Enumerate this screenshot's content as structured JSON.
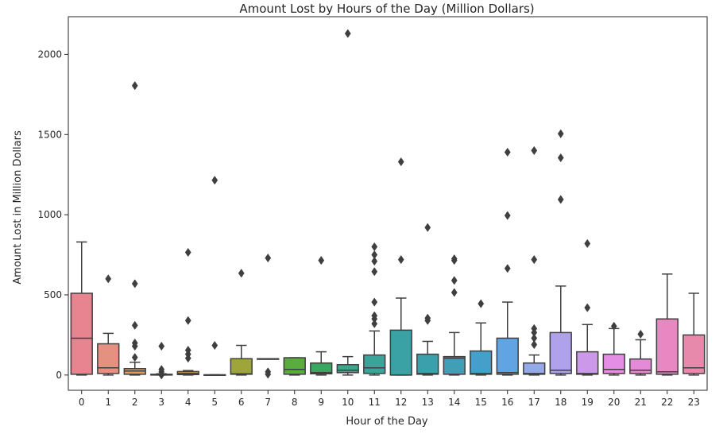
{
  "chart_data": {
    "type": "box",
    "title": "Amount Lost by Hours of the Day (Million Dollars)",
    "xlabel": "Hour of the Day",
    "ylabel": "Amount Lost in Million Dollars",
    "ylim": [
      -95,
      2235
    ],
    "yticks": [
      0,
      500,
      1000,
      1500,
      2000
    ],
    "grid": false,
    "categories": [
      "0",
      "1",
      "2",
      "3",
      "4",
      "5",
      "6",
      "7",
      "8",
      "9",
      "10",
      "11",
      "12",
      "13",
      "14",
      "15",
      "16",
      "17",
      "18",
      "19",
      "20",
      "21",
      "22",
      "23"
    ],
    "boxes": [
      {
        "category": "0",
        "color": "#e8848f",
        "min": 0,
        "q1": 5,
        "median": 230,
        "q3": 510,
        "max": 830,
        "outliers": []
      },
      {
        "category": "1",
        "color": "#e49181",
        "min": 0,
        "q1": 10,
        "median": 45,
        "q3": 195,
        "max": 260,
        "outliers": [
          600
        ]
      },
      {
        "category": "2",
        "color": "#e49a5a",
        "min": 0,
        "q1": 5,
        "median": 25,
        "q3": 40,
        "max": 80,
        "outliers": [
          110,
          180,
          200,
          310,
          570,
          1805
        ]
      },
      {
        "category": "3",
        "color": "#d2a04e",
        "min": 0,
        "q1": 0,
        "median": 2,
        "q3": 5,
        "max": 8,
        "outliers": [
          0,
          20,
          35,
          180
        ]
      },
      {
        "category": "4",
        "color": "#bda046",
        "min": 0,
        "q1": 3,
        "median": 10,
        "q3": 22,
        "max": 28,
        "outliers": [
          105,
          130,
          155,
          340,
          765
        ]
      },
      {
        "category": "5",
        "color": "#ad9f3c",
        "min": 0,
        "q1": 0,
        "median": 0,
        "q3": 2,
        "max": 2,
        "outliers": [
          185,
          1215
        ]
      },
      {
        "category": "6",
        "color": "#9ea53a",
        "min": 0,
        "q1": 5,
        "median": 8,
        "q3": 102,
        "max": 185,
        "outliers": [
          635
        ]
      },
      {
        "category": "7",
        "color": "#8aa63b",
        "min": 100,
        "q1": 100,
        "median": 100,
        "q3": 102,
        "max": 102,
        "outliers": [
          5,
          20,
          730
        ]
      },
      {
        "category": "8",
        "color": "#58ad3c",
        "min": 0,
        "q1": 5,
        "median": 35,
        "q3": 108,
        "max": 108,
        "outliers": []
      },
      {
        "category": "9",
        "color": "#3ba660",
        "min": 0,
        "q1": 8,
        "median": 15,
        "q3": 75,
        "max": 145,
        "outliers": [
          715
        ]
      },
      {
        "category": "10",
        "color": "#3ca58a",
        "min": 0,
        "q1": 15,
        "median": 30,
        "q3": 65,
        "max": 115,
        "outliers": [
          2130
        ]
      },
      {
        "category": "11",
        "color": "#3aa49a",
        "min": 0,
        "q1": 10,
        "median": 45,
        "q3": 125,
        "max": 275,
        "outliers": [
          320,
          350,
          370,
          455,
          645,
          710,
          750,
          800
        ]
      },
      {
        "category": "12",
        "color": "#3aa2a4",
        "min": 0,
        "q1": 0,
        "median": 0,
        "q3": 280,
        "max": 480,
        "outliers": [
          720,
          1330
        ]
      },
      {
        "category": "13",
        "color": "#3ca0ac",
        "min": 0,
        "q1": 5,
        "median": 10,
        "q3": 130,
        "max": 210,
        "outliers": [
          340,
          355,
          920
        ]
      },
      {
        "category": "14",
        "color": "#3f9fb4",
        "min": 0,
        "q1": 5,
        "median": 105,
        "q3": 115,
        "max": 265,
        "outliers": [
          515,
          590,
          715,
          725
        ]
      },
      {
        "category": "15",
        "color": "#449fcb",
        "min": 0,
        "q1": 5,
        "median": 10,
        "q3": 150,
        "max": 325,
        "outliers": [
          445
        ]
      },
      {
        "category": "16",
        "color": "#61a4e3",
        "min": 0,
        "q1": 5,
        "median": 15,
        "q3": 230,
        "max": 455,
        "outliers": [
          665,
          995,
          1390
        ]
      },
      {
        "category": "17",
        "color": "#93a9e8",
        "min": 0,
        "q1": 5,
        "median": 10,
        "q3": 75,
        "max": 125,
        "outliers": [
          190,
          230,
          265,
          290,
          720,
          1400
        ]
      },
      {
        "category": "18",
        "color": "#b0a2ea",
        "min": 0,
        "q1": 10,
        "median": 30,
        "q3": 265,
        "max": 555,
        "outliers": [
          1095,
          1355,
          1505
        ]
      },
      {
        "category": "19",
        "color": "#cc98ea",
        "min": 0,
        "q1": 5,
        "median": 10,
        "q3": 145,
        "max": 315,
        "outliers": [
          420,
          820
        ]
      },
      {
        "category": "20",
        "color": "#e48ee5",
        "min": 0,
        "q1": 10,
        "median": 35,
        "q3": 130,
        "max": 290,
        "outliers": [
          305
        ]
      },
      {
        "category": "21",
        "color": "#e58ad6",
        "min": 0,
        "q1": 10,
        "median": 30,
        "q3": 100,
        "max": 220,
        "outliers": [
          255
        ]
      },
      {
        "category": "22",
        "color": "#e887c2",
        "min": 0,
        "q1": 5,
        "median": 20,
        "q3": 350,
        "max": 630,
        "outliers": []
      },
      {
        "category": "23",
        "color": "#e689ab",
        "min": 0,
        "q1": 10,
        "median": 45,
        "q3": 250,
        "max": 510,
        "outliers": []
      }
    ]
  }
}
